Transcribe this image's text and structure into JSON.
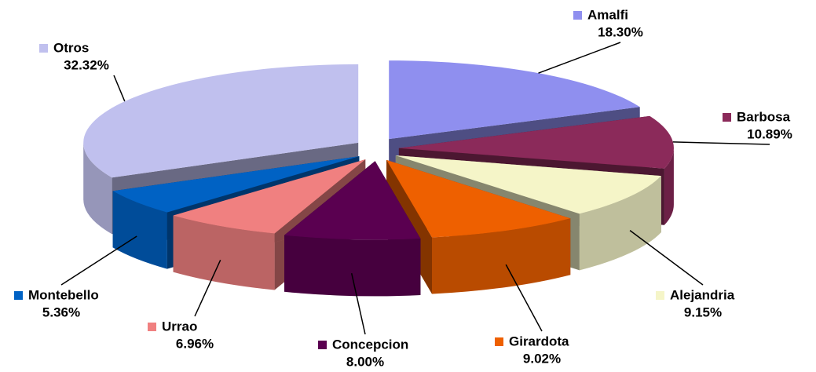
{
  "chart_data": {
    "type": "pie",
    "categories": [
      "Amalfi",
      "Barbosa",
      "Alejandria",
      "Girardota",
      "Concepcion",
      "Urrao",
      "Montebello",
      "Otros"
    ],
    "values": [
      18.3,
      10.89,
      9.15,
      9.02,
      8.0,
      6.96,
      5.36,
      32.32
    ],
    "value_labels": [
      "18.30%",
      "10.89%",
      "9.15%",
      "9.02%",
      "8.00%",
      "6.96%",
      "5.36%",
      "32.32%"
    ],
    "colors": [
      "#8f8fef",
      "#8b2a5a",
      "#f5f5c8",
      "#ee6000",
      "#5a0050",
      "#f08080",
      "#0062c4",
      "#c0c0ee"
    ]
  }
}
